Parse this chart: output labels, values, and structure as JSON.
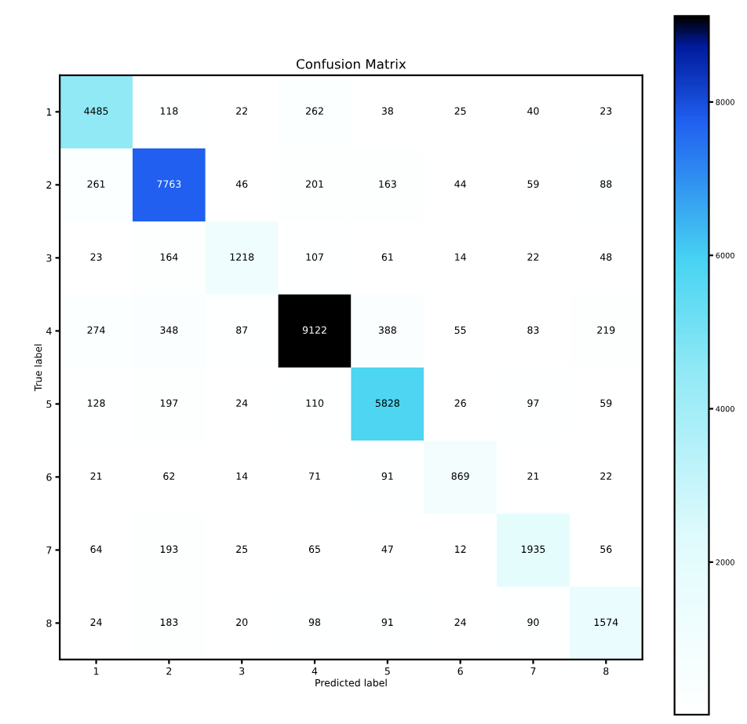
{
  "chart_data": {
    "type": "heatmap",
    "title": "Confusion Matrix",
    "xlabel": "Predicted label",
    "ylabel": "True label",
    "categories": [
      "1",
      "2",
      "3",
      "4",
      "5",
      "6",
      "7",
      "8"
    ],
    "y_categories": [
      "1",
      "2",
      "3",
      "4",
      "5",
      "6",
      "7",
      "8"
    ],
    "cells": [
      [
        4485,
        118,
        22,
        262,
        38,
        25,
        40,
        23
      ],
      [
        261,
        7763,
        46,
        201,
        163,
        44,
        59,
        88
      ],
      [
        23,
        164,
        1218,
        107,
        61,
        14,
        22,
        48
      ],
      [
        274,
        348,
        87,
        9122,
        388,
        55,
        83,
        219
      ],
      [
        128,
        197,
        24,
        110,
        5828,
        26,
        97,
        59
      ],
      [
        21,
        62,
        14,
        71,
        91,
        869,
        21,
        22
      ],
      [
        64,
        193,
        25,
        65,
        47,
        12,
        1935,
        56
      ],
      [
        24,
        183,
        20,
        98,
        91,
        24,
        90,
        1574
      ]
    ],
    "data_labels": true,
    "clim": [
      12,
      9122
    ],
    "cticks": [
      2000,
      4000,
      6000,
      8000
    ]
  }
}
